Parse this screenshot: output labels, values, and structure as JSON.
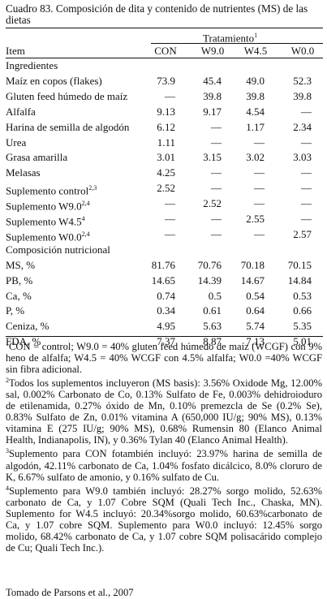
{
  "caption": "Cuadro 83. Composición de dita y contenido de nutrientes (MS) de las dietas",
  "header": {
    "group_label": "Tratamiento",
    "group_sup": "1",
    "item_label": "Item",
    "columns": [
      "CON",
      "W9.0",
      "W4.5",
      "W0.0"
    ]
  },
  "rows": [
    {
      "label": "Ingredientes",
      "sup": "",
      "values": [
        "",
        "",
        "",
        ""
      ]
    },
    {
      "label": "Maíz en copos (flakes)",
      "sup": "",
      "values": [
        "73.9",
        "45.4",
        "49.0",
        "52.3"
      ]
    },
    {
      "label": "Gluten feed húmedo de maíz",
      "sup": "",
      "values": [
        "—",
        "39.8",
        "39.8",
        "39.8"
      ]
    },
    {
      "label": "Alfalfa",
      "sup": "",
      "values": [
        "9.13",
        "9.17",
        "4.54",
        "—"
      ]
    },
    {
      "label": "Harina de semilla de algodón",
      "sup": "",
      "values": [
        "6.12",
        "—",
        "1.17",
        "2.34"
      ]
    },
    {
      "label": "Urea",
      "sup": "",
      "values": [
        "1.11",
        "—",
        "—",
        "—"
      ]
    },
    {
      "label": "Grasa amarilla",
      "sup": "",
      "values": [
        "3.01",
        "3.15",
        "3.02",
        "3.03"
      ]
    },
    {
      "label": "Melasas",
      "sup": "",
      "values": [
        "4.25",
        "—",
        "—",
        "—"
      ]
    },
    {
      "label": "Suplemento control",
      "sup": "2,3",
      "values": [
        "2.52",
        "—",
        "—",
        "—"
      ]
    },
    {
      "label": "Suplemento W9.0",
      "sup": "2,4",
      "values": [
        "—",
        "2.52",
        "—",
        "—"
      ]
    },
    {
      "label": "Suplemento W4.5",
      "sup": "4",
      "values": [
        "—",
        "—",
        "2.55",
        "—"
      ]
    },
    {
      "label": "Suplemento W0.0",
      "sup": "2,4",
      "values": [
        "—",
        "—",
        "—",
        "2.57"
      ]
    },
    {
      "label": "Composición nutricional",
      "sup": "",
      "values": [
        "",
        "",
        "",
        ""
      ]
    },
    {
      "label": "MS, %",
      "sup": "",
      "values": [
        "81.76",
        "70.76",
        "70.18",
        "70.15"
      ]
    },
    {
      "label": "PB, %",
      "sup": "",
      "values": [
        "14.65",
        "14.39",
        "14.67",
        "14.84"
      ]
    },
    {
      "label": "Ca, %",
      "sup": "",
      "values": [
        "0.74",
        "0.5",
        "0.54",
        "0.53"
      ]
    },
    {
      "label": "P, %",
      "sup": "",
      "values": [
        "0.34",
        "0.61",
        "0.64",
        "0.66"
      ]
    },
    {
      "label": "Ceniza, %",
      "sup": "",
      "values": [
        "4.95",
        "5.63",
        "5.74",
        "5.35"
      ]
    },
    {
      "label": "FDA, %",
      "sup": "",
      "values": [
        "7.37",
        "8.87",
        "7.13",
        "5.01"
      ]
    }
  ],
  "footnotes": [
    {
      "sup": "1",
      "text": "CON = control; W9.0 = 40% gluten feed húmedo de maíz (WCGF) con 9% heno de alfalfa; W4.5 = 40% WCGF con 4.5% alfalfa; W0.0 =40% WCGF sin fibra adicional."
    },
    {
      "sup": "2",
      "text": "Todos los suplementos incluyeron (MS basis): 3.56% Oxidode Mg, 12.00% sal, 0.002% Carbonato de Co, 0.13% Sulfato de Fe, 0.003% dehidroioduro de etilenamida, 0.27% óxido de Mn, 0.10% premezcla de Se (0.2% Se), 0.83% Sulfato de Zn, 0.01% vitamina A (650,000 IU/g; 90% MS), 0.13% vitamina E (275 IU/g; 90% MS), 0.68% Rumensin 80 (Elanco Animal Health, Indianapolis, IN), y 0.36% Tylan 40 (Elanco Animal Health)."
    },
    {
      "sup": "3",
      "text": "Suplemento para CON fotambién incluyó: 23.97% harina de semilla de algodón, 42.11% carbonato de Ca, 1.04% fosfato dicálcico, 8.0% cloruro de K, 6.67% sulfato de amonio, y 0.16% sulfato de Cu."
    },
    {
      "sup": "4",
      "text": "Suplemento para W9.0 también incluyó: 28.27% sorgo molido, 52.63% carbonato de Ca, y 1.07 Cobre SQM (Quali Tech Inc., Chaska, MN). Suplemento for W4.5 incluyó: 20.34%sorgo molido, 60.63%carbonato de Ca, y 1.07 cobre SQM. Suplemento para W0.0 incluyó: 12.45% sorgo molido, 68.42% carbonato de Ca, y 1.07 cobre SQM polisacárido complejo de Cu; Quali Tech Inc.)."
    }
  ],
  "source": "Tomado de Parsons et al., 2007"
}
